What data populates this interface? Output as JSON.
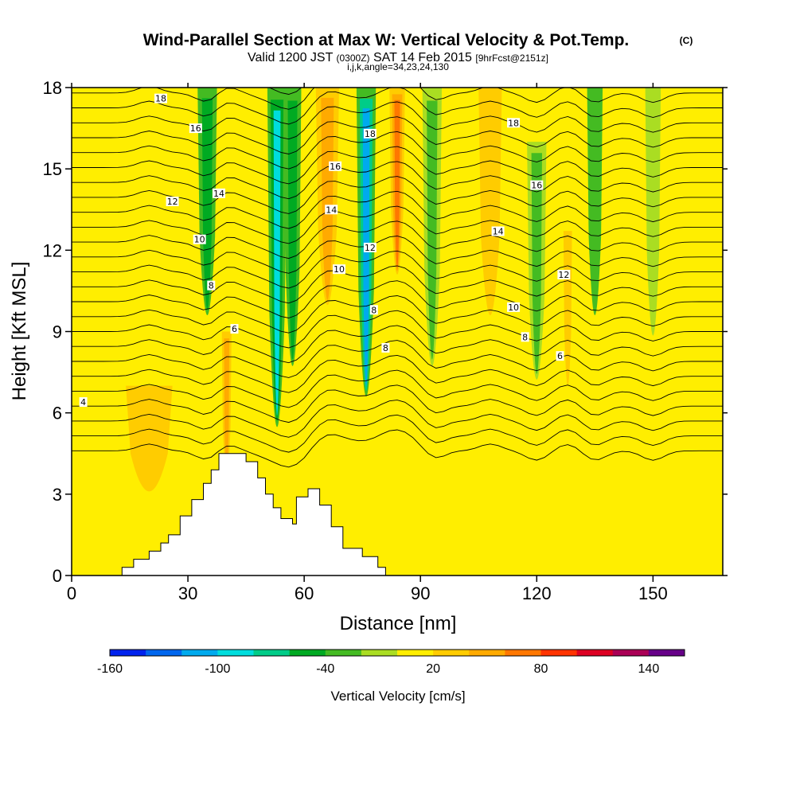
{
  "title": "Wind-Parallel Section at Max W: Vertical Velocity & Pot.Temp.",
  "title_mark": "(C)",
  "subtitle_parts": {
    "a": "Valid 1200 JST",
    "b": "(0300Z)",
    "c": "SAT 14 Feb 2015",
    "d": "[9hrFcst@2151z]"
  },
  "subtitle2": "i,j,k,angle=34,23,24,130",
  "chart_data": {
    "type": "heatmap",
    "xlabel": "Distance [nm]",
    "ylabel": "Height [Kft MSL]",
    "xlim": [
      0,
      168
    ],
    "ylim": [
      0,
      18
    ],
    "x_ticks": [
      0,
      30,
      60,
      90,
      120,
      150
    ],
    "y_ticks": [
      0,
      3,
      6,
      9,
      12,
      15,
      18
    ],
    "colorbar": {
      "title": "Vertical Velocity [cm/s]",
      "tick_labels": [
        "-160",
        "-100",
        "-40",
        "20",
        "80",
        "140"
      ],
      "tick_values": [
        -160,
        -100,
        -40,
        20,
        80,
        140
      ],
      "levels": [
        -160,
        -140,
        -120,
        -100,
        -80,
        -60,
        -40,
        -20,
        0,
        20,
        40,
        60,
        80,
        100,
        120,
        140,
        160
      ],
      "colors": [
        "#0022ee",
        "#0066ee",
        "#00aaee",
        "#00dddd",
        "#00cc88",
        "#00aa22",
        "#44bb22",
        "#aadd22",
        "#ffee00",
        "#ffcc00",
        "#ffaa00",
        "#ff7700",
        "#ff3300",
        "#dd0022",
        "#aa0055",
        "#660088"
      ]
    },
    "vertical_velocity_features": [
      {
        "x": 35,
        "width": 5,
        "top": 18,
        "bottom": 7.0,
        "value": -45
      },
      {
        "x": 40,
        "width": 2.5,
        "top": 9,
        "bottom": 2,
        "value": 55
      },
      {
        "x": 53,
        "width": 5,
        "top": 18,
        "bottom": 1.5,
        "value": -90
      },
      {
        "x": 57,
        "width": 4.5,
        "top": 18,
        "bottom": 4.5,
        "value": -55
      },
      {
        "x": 66,
        "width": 6,
        "top": 18,
        "bottom": 7.5,
        "value": 40
      },
      {
        "x": 76,
        "width": 5,
        "top": 18,
        "bottom": 3.0,
        "value": -105
      },
      {
        "x": 84,
        "width": 4,
        "top": 18,
        "bottom": 9,
        "value": 75
      },
      {
        "x": 93,
        "width": 5,
        "top": 18,
        "bottom": 4.5,
        "value": -30
      },
      {
        "x": 108,
        "width": 6,
        "top": 18,
        "bottom": 7,
        "value": 25
      },
      {
        "x": 120,
        "width": 5,
        "top": 16,
        "bottom": 4.5,
        "value": -30
      },
      {
        "x": 128,
        "width": 4,
        "top": 13,
        "bottom": 5,
        "value": 30
      },
      {
        "x": 135,
        "width": 4,
        "top": 18,
        "bottom": 7,
        "value": -25
      },
      {
        "x": 150,
        "width": 4,
        "top": 18,
        "bottom": 6,
        "value": -15
      },
      {
        "x": 20,
        "width": 12,
        "top": 7,
        "bottom": 2,
        "value": 25
      }
    ],
    "potential_temperature_labels": [
      {
        "x": 3,
        "y": 6.4,
        "text": "4"
      },
      {
        "x": 23,
        "y": 17.6,
        "text": "18"
      },
      {
        "x": 32,
        "y": 16.5,
        "text": "16"
      },
      {
        "x": 26,
        "y": 13.8,
        "text": "12"
      },
      {
        "x": 38,
        "y": 14.1,
        "text": "14"
      },
      {
        "x": 33,
        "y": 12.4,
        "text": "10"
      },
      {
        "x": 36,
        "y": 10.7,
        "text": "8"
      },
      {
        "x": 42,
        "y": 9.1,
        "text": "6"
      },
      {
        "x": 68,
        "y": 15.1,
        "text": "16"
      },
      {
        "x": 67,
        "y": 13.5,
        "text": "14"
      },
      {
        "x": 69,
        "y": 11.3,
        "text": "10"
      },
      {
        "x": 77,
        "y": 16.3,
        "text": "18"
      },
      {
        "x": 77,
        "y": 12.1,
        "text": "12"
      },
      {
        "x": 78,
        "y": 9.8,
        "text": "8"
      },
      {
        "x": 81,
        "y": 8.4,
        "text": "8"
      },
      {
        "x": 114,
        "y": 16.7,
        "text": "18"
      },
      {
        "x": 120,
        "y": 14.4,
        "text": "16"
      },
      {
        "x": 110,
        "y": 12.7,
        "text": "14"
      },
      {
        "x": 127,
        "y": 11.1,
        "text": "12"
      },
      {
        "x": 114,
        "y": 9.9,
        "text": "10"
      },
      {
        "x": 117,
        "y": 8.8,
        "text": "8"
      },
      {
        "x": 126,
        "y": 8.1,
        "text": "6"
      }
    ],
    "terrain_profile": [
      [
        13,
        0.0
      ],
      [
        13,
        0.3
      ],
      [
        16,
        0.3
      ],
      [
        16,
        0.6
      ],
      [
        20,
        0.6
      ],
      [
        20,
        0.9
      ],
      [
        23,
        0.9
      ],
      [
        23,
        1.2
      ],
      [
        25,
        1.2
      ],
      [
        25,
        1.5
      ],
      [
        28,
        1.5
      ],
      [
        28,
        2.2
      ],
      [
        31,
        2.2
      ],
      [
        31,
        2.8
      ],
      [
        34,
        2.8
      ],
      [
        34,
        3.4
      ],
      [
        36,
        3.4
      ],
      [
        36,
        3.9
      ],
      [
        38,
        3.9
      ],
      [
        38,
        4.5
      ],
      [
        45,
        4.5
      ],
      [
        45,
        4.2
      ],
      [
        48,
        4.2
      ],
      [
        48,
        3.6
      ],
      [
        50,
        3.6
      ],
      [
        50,
        3.0
      ],
      [
        52,
        3.0
      ],
      [
        52,
        2.5
      ],
      [
        54,
        2.5
      ],
      [
        54,
        2.1
      ],
      [
        57,
        2.1
      ],
      [
        57,
        1.9
      ],
      [
        58,
        1.9
      ],
      [
        58,
        2.9
      ],
      [
        61,
        2.9
      ],
      [
        61,
        3.2
      ],
      [
        64,
        3.2
      ],
      [
        64,
        2.6
      ],
      [
        67,
        2.6
      ],
      [
        67,
        1.8
      ],
      [
        70,
        1.8
      ],
      [
        70,
        1.0
      ],
      [
        75,
        1.0
      ],
      [
        75,
        0.7
      ],
      [
        79,
        0.7
      ],
      [
        79,
        0.3
      ],
      [
        81,
        0.3
      ],
      [
        81,
        0.0
      ]
    ]
  }
}
